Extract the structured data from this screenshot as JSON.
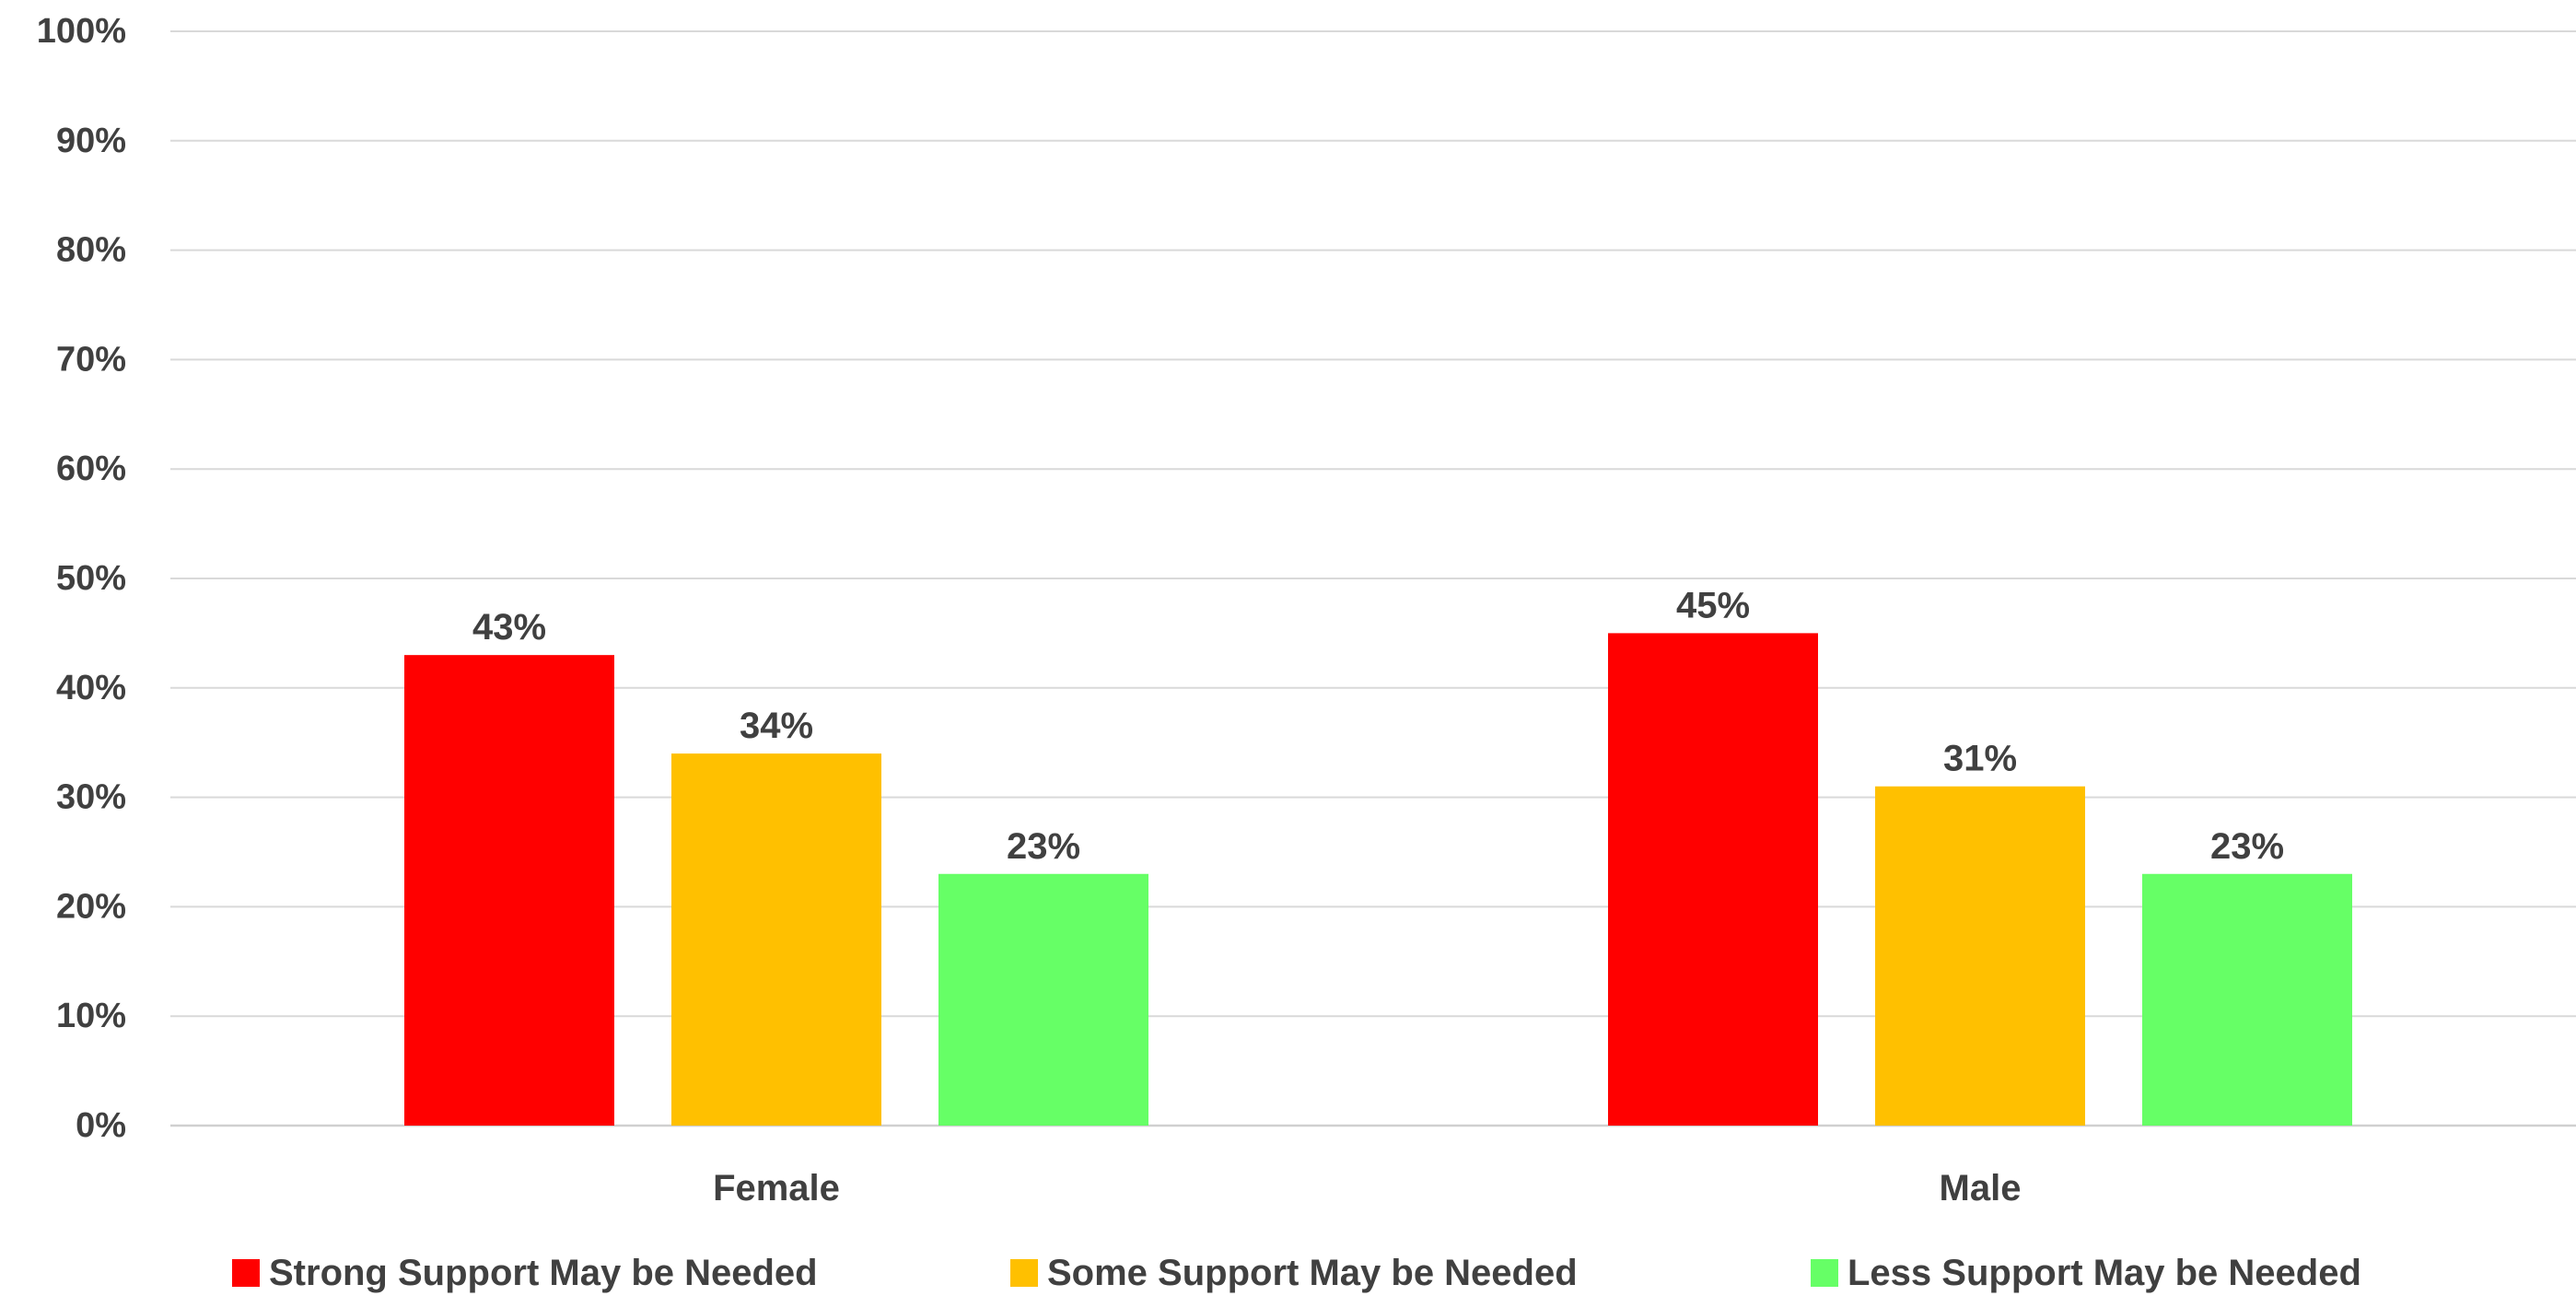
{
  "chart_data": {
    "type": "bar",
    "title": "",
    "xlabel": "",
    "ylabel": "",
    "categories": [
      "Female",
      "Male"
    ],
    "series": [
      {
        "name": "Strong Support May be Needed",
        "color": "#ff0000",
        "values": [
          43,
          45
        ],
        "labels": [
          "43%",
          "45%"
        ]
      },
      {
        "name": "Some Support May be Needed",
        "color": "#ffc000",
        "values": [
          34,
          31
        ],
        "labels": [
          "34%",
          "31%"
        ]
      },
      {
        "name": "Less Support May be Needed",
        "color": "#66ff66",
        "values": [
          23,
          23
        ],
        "labels": [
          "23%",
          "23%"
        ]
      }
    ],
    "ylim": [
      0,
      100
    ],
    "yticks": [
      "0%",
      "10%",
      "20%",
      "30%",
      "40%",
      "50%",
      "60%",
      "70%",
      "80%",
      "90%",
      "100%"
    ],
    "grid": true,
    "legend_position": "bottom"
  }
}
